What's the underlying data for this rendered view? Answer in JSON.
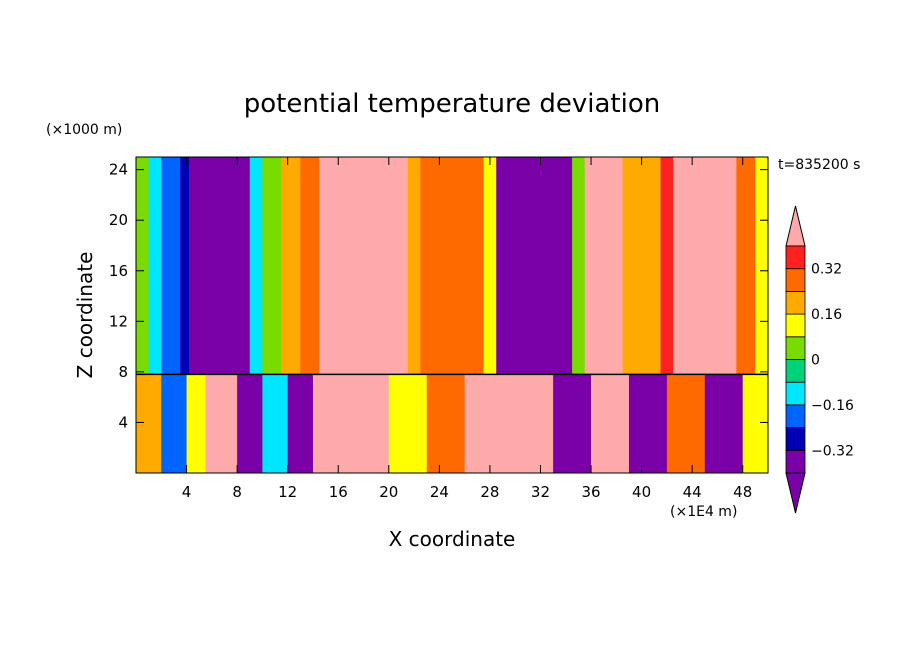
{
  "chart_data": {
    "type": "heatmap",
    "title": "potential temperature deviation",
    "xlabel": "X coordinate",
    "ylabel": "Z coordinate",
    "x_unit": "(×1E4 m)",
    "y_unit": "(×1000 m)",
    "time_label": "t=835200 s",
    "xlim": [
      0,
      50
    ],
    "ylim": [
      0,
      25
    ],
    "x_ticks": [
      4,
      8,
      12,
      16,
      20,
      24,
      28,
      32,
      36,
      40,
      44,
      48
    ],
    "y_ticks": [
      4,
      8,
      12,
      16,
      20,
      24
    ],
    "x_tick_labels": [
      "4",
      "8",
      "12",
      "16",
      "20",
      "24",
      "28",
      "32",
      "36",
      "40",
      "44",
      "48"
    ],
    "y_tick_labels": [
      "4",
      "8",
      "12",
      "16",
      "20",
      "24"
    ],
    "colorbar": {
      "levels": [
        -0.4,
        -0.32,
        -0.24,
        -0.16,
        -0.08,
        0,
        0.08,
        0.16,
        0.24,
        0.32,
        0.4
      ],
      "colors": [
        "#7a00a8",
        "#7a00a8",
        "#0000b4",
        "#0064ff",
        "#00e6ff",
        "#00d27a",
        "#78dc00",
        "#ffff00",
        "#ffaa00",
        "#ff6a00",
        "#ff2020",
        "#ffaaaa"
      ],
      "tick_values": [
        -0.32,
        -0.16,
        0,
        0.16,
        0.32
      ],
      "tick_labels": [
        "−0.32",
        "−0.16",
        "0",
        "0.16",
        "0.32"
      ]
    },
    "upper_columns": [
      {
        "x": [
          0,
          1
        ],
        "v": 0.05
      },
      {
        "x": [
          1,
          2
        ],
        "v": -0.1
      },
      {
        "x": [
          2,
          3.5
        ],
        "v": -0.18
      },
      {
        "x": [
          3.5,
          4.2
        ],
        "v": -0.3
      },
      {
        "x": [
          4.2,
          9
        ],
        "v": -0.42
      },
      {
        "x": [
          9,
          10
        ],
        "v": -0.1
      },
      {
        "x": [
          10,
          11.5
        ],
        "v": 0.05
      },
      {
        "x": [
          11.5,
          13
        ],
        "v": 0.18
      },
      {
        "x": [
          13,
          14.5
        ],
        "v": 0.3
      },
      {
        "x": [
          14.5,
          21.5
        ],
        "v": 0.42
      },
      {
        "x": [
          21.5,
          22.5
        ],
        "v": 0.2
      },
      {
        "x": [
          22.5,
          27.5
        ],
        "v": 0.26
      },
      {
        "x": [
          27.5,
          28.5
        ],
        "v": 0.1
      },
      {
        "x": [
          28.5,
          34.5
        ],
        "v": -0.42
      },
      {
        "x": [
          34.5,
          35.5
        ],
        "v": 0.05
      },
      {
        "x": [
          35.5,
          38.5
        ],
        "v": 0.42
      },
      {
        "x": [
          38.5,
          41.5
        ],
        "v": 0.2
      },
      {
        "x": [
          41.5,
          42.5
        ],
        "v": 0.35
      },
      {
        "x": [
          42.5,
          47.5
        ],
        "v": 0.42
      },
      {
        "x": [
          47.5,
          49
        ],
        "v": 0.28
      },
      {
        "x": [
          49,
          50
        ],
        "v": 0.12
      }
    ],
    "lower_columns": [
      {
        "x": [
          0,
          2
        ],
        "v": 0.18
      },
      {
        "x": [
          2,
          4
        ],
        "v": -0.2
      },
      {
        "x": [
          4,
          5.5
        ],
        "v": 0.1
      },
      {
        "x": [
          5.5,
          8
        ],
        "v": 0.42
      },
      {
        "x": [
          8,
          10
        ],
        "v": -0.42
      },
      {
        "x": [
          10,
          12
        ],
        "v": -0.12
      },
      {
        "x": [
          12,
          14
        ],
        "v": -0.42
      },
      {
        "x": [
          14,
          20
        ],
        "v": 0.42
      },
      {
        "x": [
          20,
          23
        ],
        "v": 0.1
      },
      {
        "x": [
          23,
          26
        ],
        "v": 0.3
      },
      {
        "x": [
          26,
          29
        ],
        "v": 0.42
      },
      {
        "x": [
          29,
          33
        ],
        "v": 0.42
      },
      {
        "x": [
          33,
          36
        ],
        "v": -0.42
      },
      {
        "x": [
          36,
          39
        ],
        "v": 0.42
      },
      {
        "x": [
          39,
          42
        ],
        "v": -0.42
      },
      {
        "x": [
          42,
          45
        ],
        "v": 0.28
      },
      {
        "x": [
          45,
          48
        ],
        "v": -0.42
      },
      {
        "x": [
          48,
          50
        ],
        "v": 0.12
      }
    ]
  }
}
